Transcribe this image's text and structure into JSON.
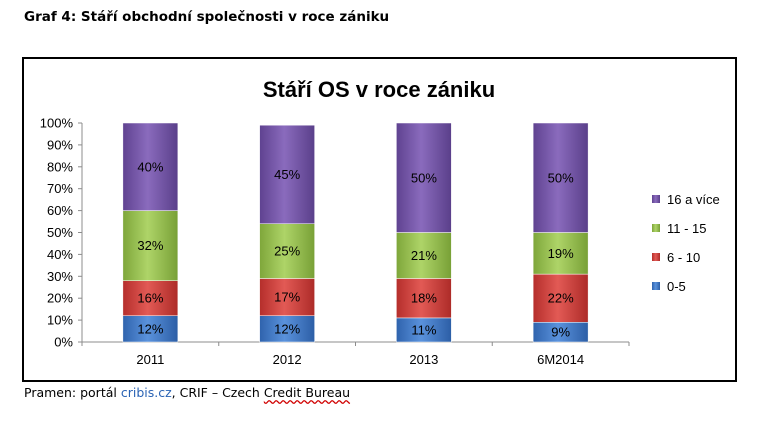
{
  "heading": "Graf 4: Stáří obchodní společnosti  v roce zániku",
  "source": {
    "prefix": "Pramen: portál ",
    "link": "cribis.cz",
    "mid": ", CRIF – Czech ",
    "underlined": "Credit Bureau"
  },
  "chart_data": {
    "type": "bar",
    "stacked": true,
    "title": "Stáří OS v roce zániku",
    "categories": [
      "2011",
      "2012",
      "2013",
      "6M2014"
    ],
    "ylim": [
      0,
      100
    ],
    "y_ticks": [
      "0%",
      "10%",
      "20%",
      "30%",
      "40%",
      "50%",
      "60%",
      "70%",
      "80%",
      "90%",
      "100%"
    ],
    "grid": false,
    "legend_position": "right",
    "series": [
      {
        "name": "0-5",
        "values": [
          12,
          12,
          11,
          9
        ],
        "labels": [
          "12%",
          "12%",
          "11%",
          "9%"
        ],
        "color": "#3f78c8"
      },
      {
        "name": "6 - 10",
        "values": [
          16,
          17,
          18,
          22
        ],
        "labels": [
          "16%",
          "17%",
          "18%",
          "22%"
        ],
        "color": "#d23c38"
      },
      {
        "name": "11 - 15",
        "values": [
          32,
          25,
          21,
          19
        ],
        "labels": [
          "32%",
          "25%",
          "21%",
          "19%"
        ],
        "color": "#94c049"
      },
      {
        "name": "16 a více",
        "values": [
          40,
          45,
          50,
          50
        ],
        "labels": [
          "40%",
          "45%",
          "50%",
          "50%"
        ],
        "color": "#7555a6"
      }
    ]
  }
}
